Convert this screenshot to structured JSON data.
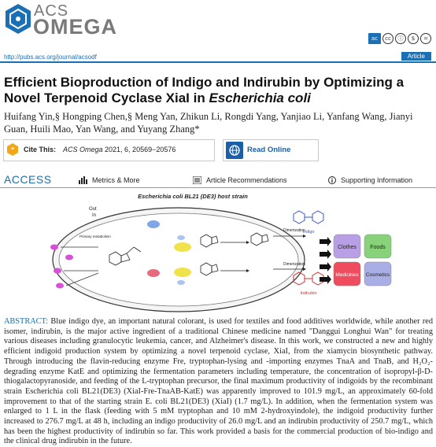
{
  "header": {
    "brand_top": "ACS",
    "brand_bottom": "OMEGA",
    "url": "http://pubs.acs.org/journal/acsodf",
    "article_type": "Article",
    "license_icons": [
      "ac-icon",
      "cc-icon",
      "by-icon",
      "nc-icon",
      "nd-icon"
    ]
  },
  "title_main": "Efficient Bioproduction of Indigo and Indirubin by Optimizing a Novel Terpenoid Cyclase XiaI in ",
  "title_italic": "Escherichia coli",
  "authors": "Huifang Yin,§ Hongping Chen,§ Meng Yan, Zhikun Li, Rongdi Yang, Yanjiao Li, Yanfang Wang, Jianyi Guan, Huili Mao, Yan Wang, and Yuyang Zhang*",
  "cite": {
    "label": "Cite This:",
    "journal": "ACS Omega",
    "ref": " 2021, 6, 20569−20576"
  },
  "read_online": "Read Online",
  "access": {
    "label": "ACCESS",
    "tabs": [
      "Metrics & More",
      "Article Recommendations",
      "Supporting Information"
    ]
  },
  "figure": {
    "title": "Escherichia coli BL21 (DE3) host strain",
    "out_label": "Out",
    "in_label": "In",
    "primary_label": "Primary metabolism",
    "dimerization": "Dimerization",
    "products": [
      "Indigo",
      "Indirubin"
    ],
    "uses": [
      "Clothes",
      "Foods",
      "Medicines",
      "Cosmetics"
    ],
    "colors": {
      "clothes": "#b9a0e6",
      "foods": "#88d27a",
      "medicines": "#ef4d5f",
      "cosmetics": "#a9aee6",
      "enzyme": "#d84fd8",
      "cell": "#e9e9e9"
    }
  },
  "abstract": {
    "label": "ABSTRACT:",
    "text": " Blue indigo dye, an important natural colorant, is used for textiles and food additives worldwide, while another red isomer, indirubin, is the major active ingredient of a traditional Chinese medicine named \"Danggui Longhui Wan\" for treating various diseases including granulocytic leukemia, cancer, and Alzheimer's disease. In this work, we constructed a new and highly efficient indigoid production system by optimizing a novel terpenoid cyclase, XiaI, from the xiamycin biosynthetic pathway. Through introducing the flavin-reducing enzyme Fre, tryptophan-lysing and -importing enzymes TnaA and TnaB, and H₂O₂-degrading enzyme KatE and optimizing the fermentation parameters including temperature, the concentration of isopropyl-β-D-thiogalactopyranoside, and feeding of the L-tryptophan precursor, the final maximum productivity of indigoids by the recombinant strain Escherichia coli BL21(DE3) (XiaI-Fre-TnaAB-KatE) was apparently improved to 101.9 mg/L, an approximately 60-fold improvement to that of the starting strain E. coli BL21(DE3) (XiaI) (1.7 mg/L). In addition, when the fermentation system was enlarged to 1 L in the flask (feeding with 5 mM tryptophan and 10 mM 2-hydroxyindole), the indigoid productivity further increased to 276.7 mg/L at 48 h, including an indigo productivity of 26.0 mg/L and an indirubin productivity of 250.7 mg/L, which has been the highest productivity of indirubin so far. This work provided a basis for the commercial production of bio-indigo and the clinical drug indirubin in the future."
  }
}
